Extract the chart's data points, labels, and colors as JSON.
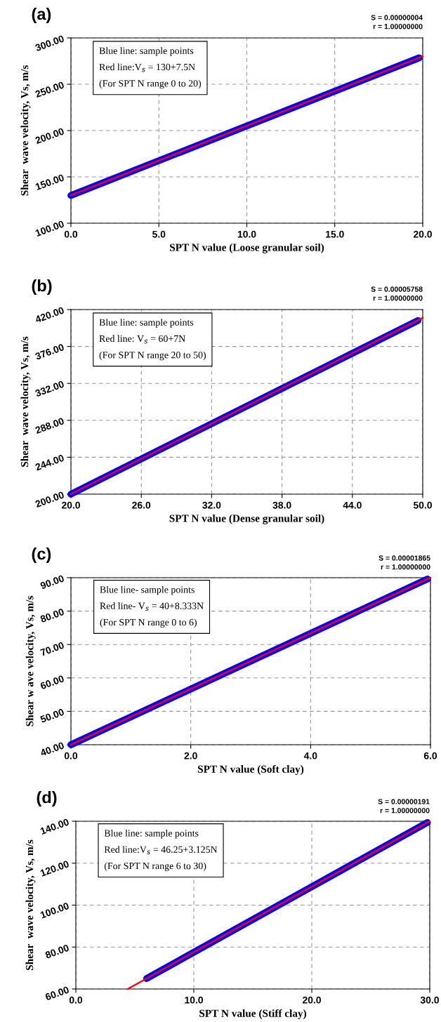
{
  "chart_data": [
    {
      "type": "line",
      "title": "(a)",
      "xlabel": "SPT N value (Loose granular soil)",
      "ylabel": "Shear  wave velocity, Vs, m/s",
      "xlim": [
        0,
        20
      ],
      "xticks": [
        {
          "value": 0,
          "label": "0.0"
        },
        {
          "value": 5,
          "label": "5.0"
        },
        {
          "value": 10,
          "label": "10.0"
        },
        {
          "value": 15,
          "label": "15.0"
        },
        {
          "value": 20,
          "label": "20.0"
        }
      ],
      "ylim": [
        100,
        300
      ],
      "yticks": [
        {
          "value": 100,
          "label": "100.00"
        },
        {
          "value": 150,
          "label": "150.00"
        },
        {
          "value": 200,
          "label": "200.00"
        },
        {
          "value": 250,
          "label": "250.00"
        },
        {
          "value": 300,
          "label": "300.00"
        }
      ],
      "grid": true,
      "line_style": "solid",
      "series": [
        {
          "color": "#0000ff",
          "x": [
            0,
            19.8
          ],
          "values": [
            130,
            278.5
          ]
        },
        {
          "color": "#ff0000",
          "x": [
            0,
            20
          ],
          "values": [
            130,
            280
          ]
        }
      ],
      "annotations": [
        "Blue line: sample points",
        "Red line:V$_{s}$ = 130+7.5N",
        "(For SPT N range 0 to 20)",
        "S = 0.00000004",
        "r = 1.00000000"
      ]
    },
    {
      "type": "line",
      "title": "(b)",
      "xlabel": "SPT N value (Dense granular soil)",
      "ylabel": "Shear  wave velocity, Vs, m/s",
      "xlim": [
        20,
        50
      ],
      "xticks": [
        {
          "value": 20,
          "label": "20.0"
        },
        {
          "value": 26,
          "label": "26.0"
        },
        {
          "value": 32,
          "label": "32.0"
        },
        {
          "value": 38,
          "label": "38.0"
        },
        {
          "value": 44,
          "label": "44.0"
        },
        {
          "value": 50,
          "label": "50.0"
        }
      ],
      "ylim": [
        200,
        420
      ],
      "yticks": [
        {
          "value": 200,
          "label": "200.00"
        },
        {
          "value": 244,
          "label": "244.00"
        },
        {
          "value": 288,
          "label": "288.00"
        },
        {
          "value": 332,
          "label": "332.00"
        },
        {
          "value": 376,
          "label": "376.00"
        },
        {
          "value": 420,
          "label": "420.00"
        }
      ],
      "grid": true,
      "line_style": "solid",
      "series": [
        {
          "color": "#0000ff",
          "x": [
            20,
            49.6
          ],
          "values": [
            200,
            407
          ]
        },
        {
          "color": "#ff0000",
          "x": [
            20,
            50
          ],
          "values": [
            200,
            410
          ]
        }
      ],
      "annotations": [
        "Blue line: sample points",
        "Red line: V$_{s}$ = 60+7N",
        "(For SPT N range 20 to 50)",
        "S = 0.00005758",
        "r = 1.00000000"
      ]
    },
    {
      "type": "line",
      "title": "(c)",
      "xlabel": "SPT N value (Soft clay)",
      "ylabel": "Shear w ave velocity, Vs, m/s",
      "xlim": [
        0,
        6
      ],
      "xticks": [
        {
          "value": 0,
          "label": "0.0"
        },
        {
          "value": 2,
          "label": "2.0"
        },
        {
          "value": 4,
          "label": "4.0"
        },
        {
          "value": 6,
          "label": "6.0"
        }
      ],
      "ylim": [
        40,
        90
      ],
      "yticks": [
        {
          "value": 40,
          "label": "40.00"
        },
        {
          "value": 50,
          "label": "50.00"
        },
        {
          "value": 60,
          "label": "60.00"
        },
        {
          "value": 70,
          "label": "70.00"
        },
        {
          "value": 80,
          "label": "80.00"
        },
        {
          "value": 90,
          "label": "90.00"
        }
      ],
      "grid": true,
      "line_style": "solid",
      "series": [
        {
          "color": "#0000ff",
          "x": [
            0,
            5.95
          ],
          "values": [
            40,
            89.6
          ]
        },
        {
          "color": "#ff0000",
          "x": [
            0,
            6
          ],
          "values": [
            40,
            90
          ]
        }
      ],
      "annotations": [
        "Blue line- sample points",
        "Red line- V$_{s}$ = 40+8.333N",
        "(For SPT N range 0 to 6)",
        "S = 0.00001865",
        "r = 1.00000000"
      ]
    },
    {
      "type": "line",
      "title": "(d)",
      "xlabel": "SPT N value (Stiff clay)",
      "ylabel": "Shear  wave velocity, Vs, m/s",
      "xlim": [
        0,
        30
      ],
      "xticks": [
        {
          "value": 0,
          "label": "0.0"
        },
        {
          "value": 10,
          "label": "10.0"
        },
        {
          "value": 20,
          "label": "20.0"
        },
        {
          "value": 30,
          "label": "30.0"
        }
      ],
      "ylim": [
        60,
        140
      ],
      "yticks": [
        {
          "value": 60,
          "label": "60.00"
        },
        {
          "value": 80,
          "label": "80.00"
        },
        {
          "value": 100,
          "label": "100.00"
        },
        {
          "value": 120,
          "label": "120.00"
        },
        {
          "value": 140,
          "label": "140.00"
        }
      ],
      "grid": true,
      "line_style": "solid",
      "series": [
        {
          "color": "#0000ff",
          "x": [
            6,
            29.8
          ],
          "values": [
            65,
            139.4
          ]
        },
        {
          "color": "#ff0000",
          "x": [
            4.4,
            30
          ],
          "values": [
            60,
            140
          ]
        }
      ],
      "annotations": [
        "Blue line: sample points",
        "Red line:V$_{s}$ = 46.25+3.125N",
        "(For SPT N range 6 to 30)",
        "S = 0.00000191",
        "r = 1.00000000"
      ]
    }
  ]
}
